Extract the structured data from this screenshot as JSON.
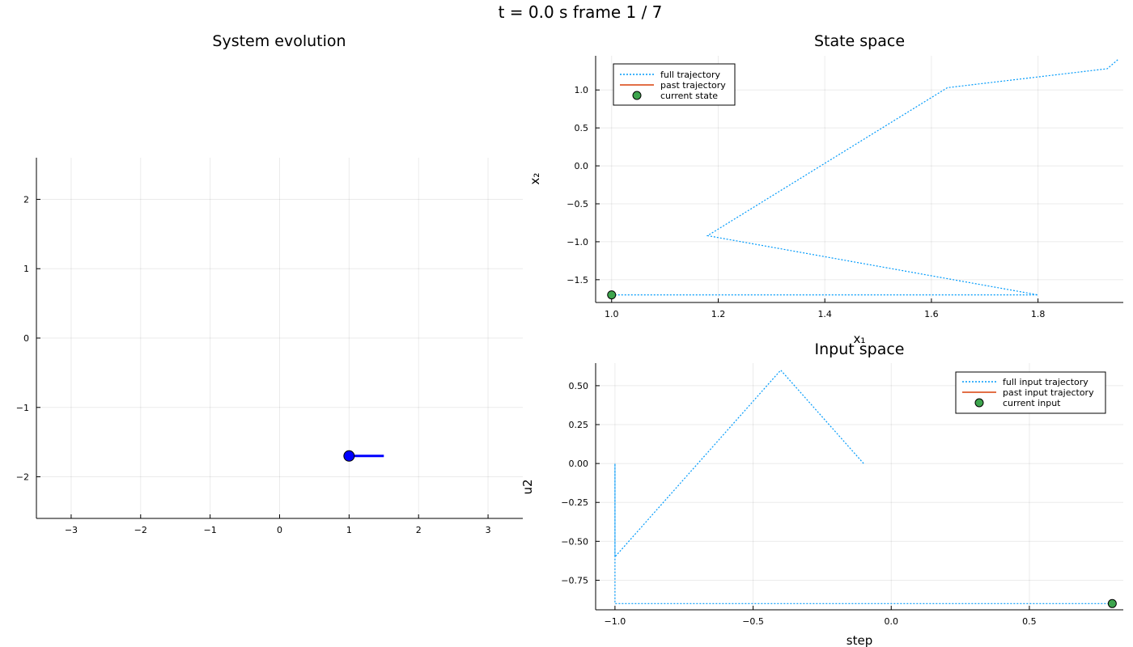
{
  "figure": {
    "title": "t = 0.0 s   frame 1 / 7"
  },
  "colors": {
    "full": "#009AFA",
    "past": "#E26F46",
    "current": "#3DA44D",
    "system": "#0000FF"
  },
  "chart_data": [
    {
      "type": "line",
      "title": "System evolution",
      "xlabel": "",
      "ylabel": "",
      "xlim": [
        -3.5,
        3.5
      ],
      "ylim": [
        -2.6,
        2.6
      ],
      "xticks": [
        -3,
        -2,
        -1,
        0,
        1,
        2,
        3
      ],
      "yticks": [
        -2,
        -1,
        0,
        1,
        2
      ],
      "xtick_labels": [
        "−3",
        "−2",
        "−1",
        "0",
        "1",
        "2",
        "3"
      ],
      "ytick_labels": [
        "−2",
        "−1",
        "0",
        "1",
        "2"
      ],
      "grid": true,
      "series": [
        {
          "x": [
            1.0,
            1.5
          ],
          "y": [
            -1.7,
            -1.7
          ],
          "style": "solid",
          "marker": "start"
        }
      ]
    },
    {
      "type": "line",
      "title": "State space",
      "xlabel": "x₁",
      "ylabel": "x₂",
      "xlim": [
        0.97,
        1.96
      ],
      "ylim": [
        -1.8,
        1.45
      ],
      "xticks": [
        1.0,
        1.2,
        1.4,
        1.6,
        1.8
      ],
      "yticks": [
        -1.5,
        -1.0,
        -0.5,
        0.0,
        0.5,
        1.0
      ],
      "xtick_labels": [
        "1.0",
        "1.2",
        "1.4",
        "1.6",
        "1.8"
      ],
      "ytick_labels": [
        "−1.5",
        "−1.0",
        "−0.5",
        "0.0",
        "0.5",
        "1.0"
      ],
      "grid": true,
      "legend_position": "top-left",
      "legend": [
        "full trajectory",
        "past trajectory",
        "current state"
      ],
      "series": [
        {
          "name": "full trajectory",
          "x": [
            1.0,
            1.8,
            1.18,
            1.63,
            1.93,
            1.95
          ],
          "y": [
            -1.7,
            -1.7,
            -0.92,
            1.03,
            1.28,
            1.4
          ]
        },
        {
          "name": "current state",
          "x": [
            1.0
          ],
          "y": [
            -1.7
          ]
        }
      ]
    },
    {
      "type": "line",
      "title": "Input space",
      "xlabel": "step",
      "ylabel": "u2",
      "xlim": [
        -1.07,
        0.84
      ],
      "ylim": [
        -0.94,
        0.645
      ],
      "xticks": [
        -1.0,
        -0.5,
        0.0,
        0.5
      ],
      "yticks": [
        -0.75,
        -0.5,
        -0.25,
        0.0,
        0.25,
        0.5
      ],
      "xtick_labels": [
        "−1.0",
        "−0.5",
        "0.0",
        "0.5"
      ],
      "ytick_labels": [
        "−0.75",
        "−0.50",
        "−0.25",
        "0.00",
        "0.25",
        "0.50"
      ],
      "grid": true,
      "legend_position": "top-right",
      "legend": [
        "full input trajectory",
        "past input trajectory",
        "current input"
      ],
      "series": [
        {
          "name": "full input trajectory",
          "x": [
            0.8,
            -1.0,
            -1.0,
            -1.0,
            -0.4,
            -0.1
          ],
          "y": [
            -0.9,
            -0.9,
            0.0,
            -0.6,
            0.6,
            0.0
          ]
        },
        {
          "name": "current input",
          "x": [
            0.8
          ],
          "y": [
            -0.9
          ]
        }
      ]
    }
  ]
}
